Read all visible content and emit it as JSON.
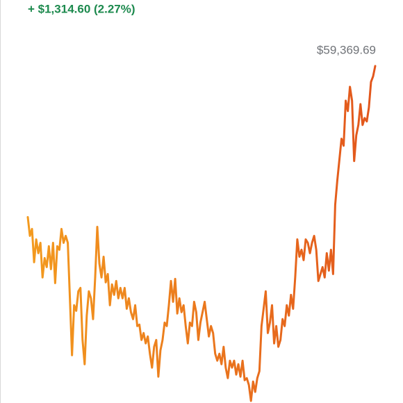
{
  "chart_data": {
    "type": "line",
    "subtitle": "+ $1,314.60 (2.27%)",
    "annotation": "$59,369.69",
    "colors": [
      "#f39a1e",
      "#e2561c"
    ],
    "values": [
      57912,
      57731,
      57798,
      57477,
      57697,
      57564,
      57664,
      57330,
      57517,
      57430,
      57631,
      57410,
      57664,
      57276,
      57631,
      57597,
      57798,
      57664,
      57731,
      57664,
      57129,
      56580,
      57062,
      57008,
      57196,
      57229,
      56727,
      56493,
      56962,
      57196,
      57129,
      56928,
      57330,
      57818,
      57463,
      57330,
      57530,
      57283,
      57363,
      57062,
      57263,
      57162,
      57296,
      57129,
      57229,
      57129,
      57229,
      57028,
      57129,
      56995,
      56928,
      57062,
      56861,
      56875,
      56727,
      56794,
      56694,
      56761,
      56594,
      56460,
      56661,
      56727,
      56373,
      56627,
      56727,
      56895,
      56861,
      57062,
      57296,
      57095,
      57316,
      56982,
      57129,
      56995,
      57062,
      56861,
      56694,
      56895,
      56861,
      57095,
      56995,
      56727,
      56895,
      56995,
      57095,
      56928,
      56761,
      56861,
      56794,
      56594,
      56527,
      56594,
      56493,
      56661,
      56460,
      56359,
      56527,
      56460,
      56527,
      56393,
      56493,
      56373,
      56527,
      56339,
      56359,
      56293,
      56139,
      56326,
      56226,
      56359,
      56426,
      56861,
      57028,
      57196,
      56794,
      56895,
      57062,
      56694,
      56861,
      56661,
      56727,
      56928,
      56861,
      57062,
      56962,
      57162,
      57028,
      57330,
      57697,
      57530,
      57597,
      57497,
      57697,
      57664,
      57564,
      57664,
      57731,
      57597,
      57296,
      57363,
      57430,
      57330,
      57564,
      57396,
      57597,
      57363,
      58032,
      58266,
      58467,
      58668,
      58601,
      59035,
      58935,
      59169,
      59035,
      58453,
      58701,
      58801,
      59002,
      58801,
      58868,
      58835,
      58969,
      59216,
      59270,
      59369.69
    ]
  }
}
